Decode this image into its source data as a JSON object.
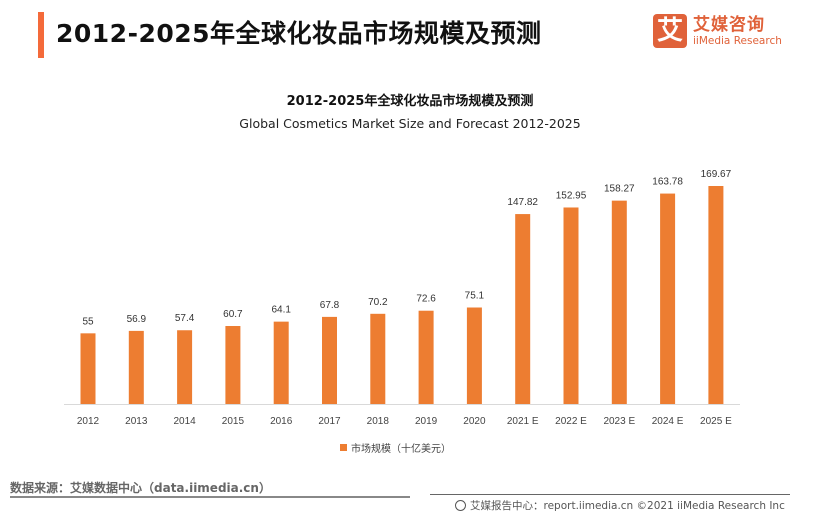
{
  "header": {
    "title": "2012-2025年全球化妆品市场规模及预测",
    "logo": {
      "mark": "艾",
      "name_cn": "艾媒咨询",
      "name_en": "iiMedia Research"
    }
  },
  "colors": {
    "accent": "#f46a3a",
    "bar": "#ed7d31",
    "brand": "#e0623a"
  },
  "chart_data": {
    "type": "bar",
    "title": "2012-2025年全球化妆品市场规模及预测",
    "subtitle": "Global Cosmetics Market Size and Forecast 2012-2025",
    "categories": [
      "2012",
      "2013",
      "2014",
      "2015",
      "2016",
      "2017",
      "2018",
      "2019",
      "2020",
      "2021 E",
      "2022 E",
      "2023 E",
      "2024 E",
      "2025 E"
    ],
    "series": [
      {
        "name": "市场规模（十亿美元）",
        "values": [
          55,
          56.9,
          57.4,
          60.7,
          64.1,
          67.8,
          70.2,
          72.6,
          75.1,
          147.82,
          152.95,
          158.27,
          163.78,
          169.67
        ]
      }
    ],
    "value_labels": [
      "55",
      "56.9",
      "57.4",
      "60.7",
      "64.1",
      "67.8",
      "70.2",
      "72.6",
      "75.1",
      "147.82",
      "152.95",
      "158.27",
      "163.78",
      "169.67"
    ],
    "xlabel": "",
    "ylabel": "",
    "ylim": [
      0,
      170
    ],
    "grid": false,
    "legend": "bottom-center"
  },
  "legend": {
    "label": "市场规模（十亿美元）"
  },
  "footer": {
    "source": "数据来源：艾媒数据中心（data.iimedia.cn）",
    "report": "艾媒报告中心：report.iimedia.cn   ©2021  iiMedia Research  Inc"
  }
}
